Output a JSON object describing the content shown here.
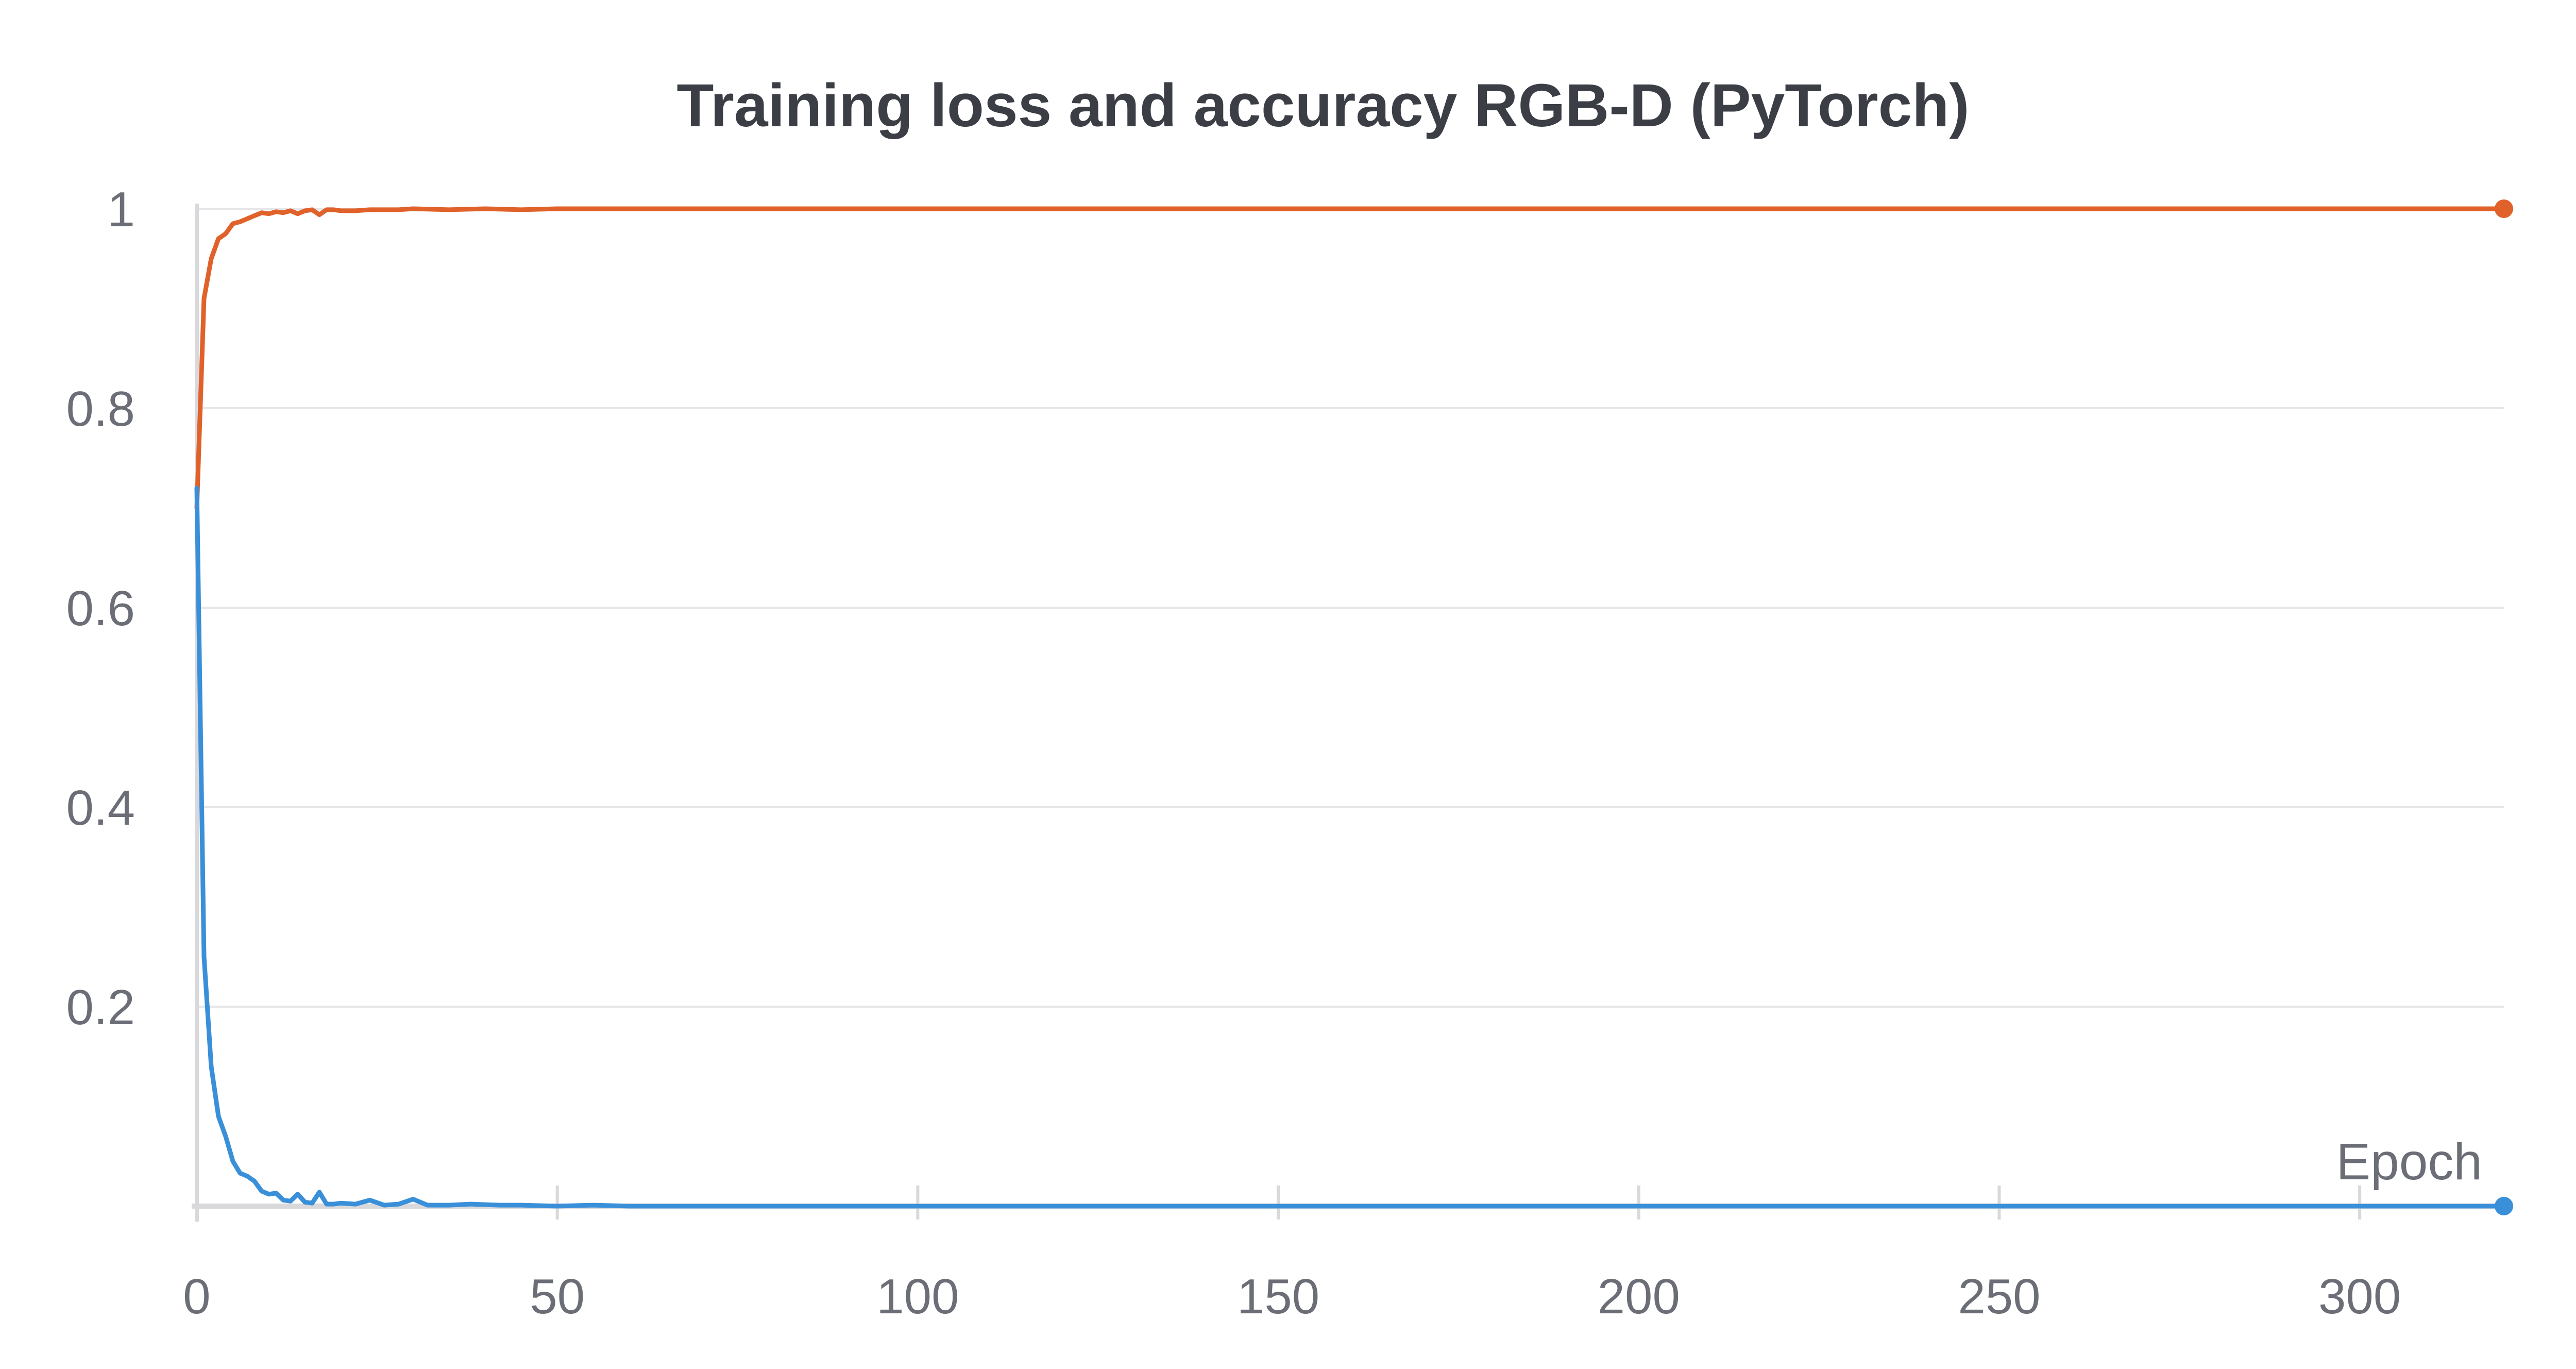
{
  "chart_data": {
    "type": "line",
    "title": "Training loss and accuracy RGB-D (PyTorch)",
    "xlabel": "Epoch",
    "ylabel": "",
    "xlim": [
      0,
      320
    ],
    "ylim": [
      0,
      1
    ],
    "x_ticks": [
      0,
      50,
      100,
      150,
      200,
      250,
      300
    ],
    "x_tick_labels": [
      "0",
      "50",
      "100",
      "150",
      "200",
      "250",
      "300"
    ],
    "y_ticks": [
      0.2,
      0.4,
      0.6,
      0.8,
      1
    ],
    "y_tick_labels": [
      "0.2",
      "0.4",
      "0.6",
      "0.8",
      "1"
    ],
    "grid": "horizontal",
    "legend": "none",
    "series": [
      {
        "color": "#e0622a",
        "x": [
          0,
          1,
          2,
          3,
          4,
          5,
          6,
          7,
          8,
          9,
          10,
          11,
          12,
          13,
          14,
          15,
          16,
          17,
          18,
          19,
          20,
          22,
          24,
          26,
          28,
          30,
          35,
          40,
          45,
          50,
          60,
          80,
          100,
          150,
          200,
          250,
          300,
          320
        ],
        "y": [
          0.7,
          0.91,
          0.95,
          0.97,
          0.975,
          0.985,
          0.987,
          0.99,
          0.993,
          0.996,
          0.995,
          0.997,
          0.996,
          0.998,
          0.995,
          0.998,
          0.999,
          0.994,
          0.999,
          0.999,
          0.998,
          0.998,
          0.999,
          0.999,
          0.999,
          1.0,
          0.999,
          1.0,
          0.999,
          1.0,
          1.0,
          1.0,
          1.0,
          1.0,
          1.0,
          1.0,
          1.0,
          1.0
        ]
      },
      {
        "color": "#3a8fd9",
        "x": [
          0,
          1,
          2,
          3,
          4,
          5,
          6,
          7,
          8,
          9,
          10,
          11,
          12,
          13,
          14,
          15,
          16,
          17,
          18,
          19,
          20,
          22,
          24,
          26,
          28,
          30,
          32,
          35,
          38,
          42,
          45,
          50,
          55,
          60,
          80,
          100,
          150,
          200,
          250,
          300,
          320
        ],
        "y": [
          0.72,
          0.25,
          0.14,
          0.09,
          0.07,
          0.045,
          0.033,
          0.03,
          0.025,
          0.015,
          0.012,
          0.013,
          0.006,
          0.005,
          0.012,
          0.004,
          0.003,
          0.014,
          0.002,
          0.002,
          0.003,
          0.002,
          0.006,
          0.001,
          0.002,
          0.007,
          0.001,
          0.001,
          0.002,
          0.001,
          0.001,
          0.0,
          0.001,
          0.0,
          0.0,
          0.0,
          0.0,
          0.0,
          0.0,
          0.0,
          0.0
        ]
      }
    ]
  }
}
